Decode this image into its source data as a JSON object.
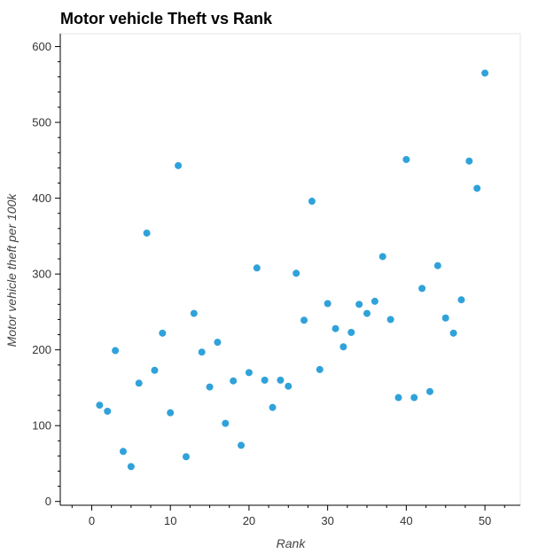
{
  "chart_data": {
    "type": "scatter",
    "title": "Motor vehicle Theft vs Rank",
    "xlabel": "Rank",
    "ylabel": "Motor vehicle theft per 100k",
    "xlim": [
      -4,
      54.5
    ],
    "ylim": [
      -5,
      617
    ],
    "x_ticks": [
      0,
      10,
      20,
      30,
      40,
      50
    ],
    "x_minor_ticks": [
      -2.5,
      2.5,
      5,
      7.5,
      12.5,
      15,
      17.5,
      22.5,
      25,
      27.5,
      32.5,
      35,
      37.5,
      42.5,
      45,
      47.5,
      52.5
    ],
    "y_ticks": [
      0,
      100,
      200,
      300,
      400,
      500,
      600
    ],
    "y_minor_ticks": [
      20,
      40,
      60,
      80,
      120,
      140,
      160,
      180,
      220,
      240,
      260,
      280,
      320,
      340,
      360,
      380,
      420,
      440,
      460,
      480,
      520,
      540,
      560,
      580
    ],
    "grid": false,
    "marker_color": "#30a2da",
    "points": [
      {
        "x": 1,
        "y": 127
      },
      {
        "x": 2,
        "y": 119
      },
      {
        "x": 3,
        "y": 199
      },
      {
        "x": 4,
        "y": 66
      },
      {
        "x": 5,
        "y": 46
      },
      {
        "x": 6,
        "y": 156
      },
      {
        "x": 7,
        "y": 354
      },
      {
        "x": 8,
        "y": 173
      },
      {
        "x": 9,
        "y": 222
      },
      {
        "x": 10,
        "y": 117
      },
      {
        "x": 11,
        "y": 443
      },
      {
        "x": 12,
        "y": 59
      },
      {
        "x": 13,
        "y": 248
      },
      {
        "x": 14,
        "y": 197
      },
      {
        "x": 15,
        "y": 151
      },
      {
        "x": 16,
        "y": 210
      },
      {
        "x": 17,
        "y": 103
      },
      {
        "x": 18,
        "y": 159
      },
      {
        "x": 19,
        "y": 74
      },
      {
        "x": 20,
        "y": 170
      },
      {
        "x": 21,
        "y": 308
      },
      {
        "x": 22,
        "y": 160
      },
      {
        "x": 23,
        "y": 124
      },
      {
        "x": 24,
        "y": 160
      },
      {
        "x": 25,
        "y": 152
      },
      {
        "x": 26,
        "y": 301
      },
      {
        "x": 27,
        "y": 239
      },
      {
        "x": 28,
        "y": 396
      },
      {
        "x": 29,
        "y": 174
      },
      {
        "x": 30,
        "y": 261
      },
      {
        "x": 31,
        "y": 228
      },
      {
        "x": 32,
        "y": 204
      },
      {
        "x": 33,
        "y": 223
      },
      {
        "x": 34,
        "y": 260
      },
      {
        "x": 35,
        "y": 248
      },
      {
        "x": 36,
        "y": 264
      },
      {
        "x": 37,
        "y": 323
      },
      {
        "x": 38,
        "y": 240
      },
      {
        "x": 39,
        "y": 137
      },
      {
        "x": 40,
        "y": 451
      },
      {
        "x": 41,
        "y": 137
      },
      {
        "x": 42,
        "y": 281
      },
      {
        "x": 43,
        "y": 145
      },
      {
        "x": 44,
        "y": 311
      },
      {
        "x": 45,
        "y": 242
      },
      {
        "x": 46,
        "y": 222
      },
      {
        "x": 47,
        "y": 266
      },
      {
        "x": 48,
        "y": 449
      },
      {
        "x": 49,
        "y": 413
      },
      {
        "x": 50,
        "y": 565
      }
    ]
  }
}
